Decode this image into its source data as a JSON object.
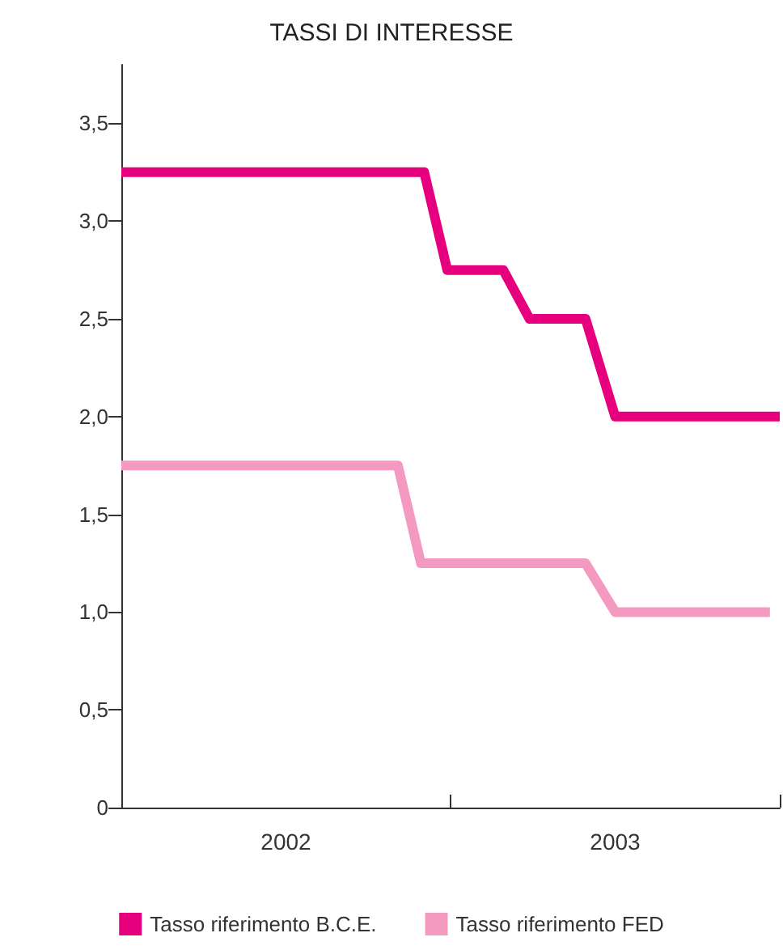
{
  "chart_data": {
    "type": "line",
    "title": "TASSI DI INTERESSE",
    "xlim": [
      2002,
      2004
    ],
    "xticks": [
      {
        "value": 2002,
        "label": null
      },
      {
        "value": 2002.5,
        "label": "2002"
      },
      {
        "value": 2003,
        "label": null
      },
      {
        "value": 2003.5,
        "label": "2003"
      },
      {
        "value": 2004,
        "label": null
      }
    ],
    "ylim": [
      0,
      3.8
    ],
    "yticks": [
      0,
      {
        "value": 0.5,
        "label": "0,5"
      },
      {
        "value": 1,
        "label": "1,0"
      },
      {
        "value": 1.5,
        "label": "1,5"
      },
      {
        "value": 2,
        "label": "2,0"
      },
      {
        "value": 2.5,
        "label": "2,5"
      },
      {
        "value": 3,
        "label": "3,0"
      },
      {
        "value": 3.5,
        "label": "3,5"
      }
    ],
    "grid": false,
    "legend": "bottom",
    "marker": "none",
    "line_style": "solid",
    "series": [
      {
        "name": "Tasso riferimento B.C.E.",
        "color": "#e6007e",
        "x": [
          2002,
          2002.92,
          2002.99,
          2003.16,
          2003.24,
          2003.41,
          2003.5,
          2004
        ],
        "values": [
          3.25,
          3.25,
          2.75,
          2.75,
          2.5,
          2.5,
          2,
          2
        ]
      },
      {
        "name": "Tasso riferimento FED",
        "color": "#f49ac1",
        "x": [
          2002,
          2002.84,
          2002.875,
          2002.91,
          2003.41,
          2003.5,
          2003.97
        ],
        "values": [
          1.75,
          1.75,
          1.5,
          1.25,
          1.25,
          1,
          1
        ]
      }
    ]
  }
}
